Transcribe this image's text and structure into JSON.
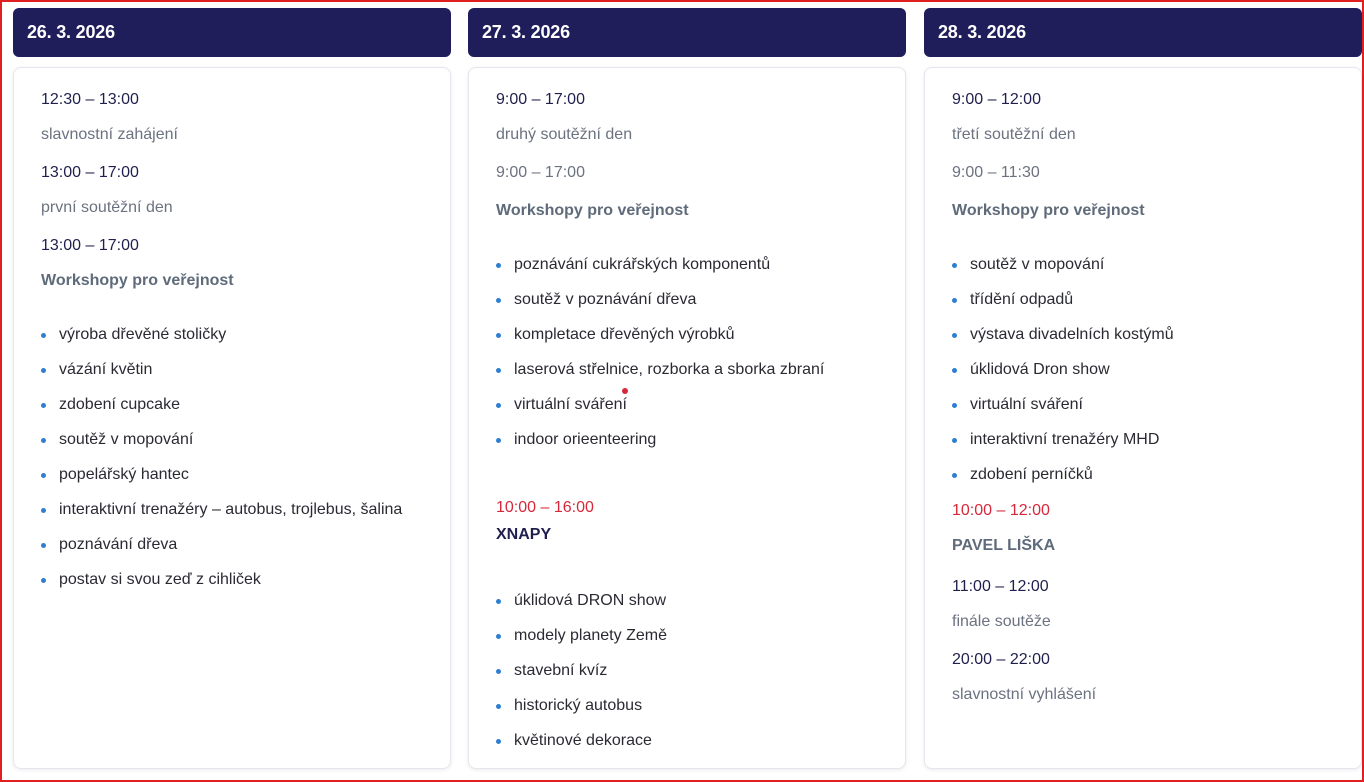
{
  "days": [
    {
      "date": "26. 3. 2026",
      "blocks": {
        "t1": "12:30 – 13:00",
        "d1": "slavnostní zahájení",
        "t2": "13:00 – 17:00",
        "d2": "první soutěžní den",
        "t3": "13:00 – 17:00",
        "h3": "Workshopy pro veřejnost"
      },
      "items": [
        "výroba dřevěné stoličky",
        "vázání květin",
        "zdobení cupcake",
        "soutěž v mopování",
        "popelářský hantec",
        "interaktivní trenažéry – autobus, trojlebus, šalina",
        "poznávání dřeva",
        "postav si svou zeď z cihliček"
      ]
    },
    {
      "date": "27. 3. 2026",
      "blocks": {
        "t1": "9:00 – 17:00",
        "d1": "druhý soutěžní den",
        "t2": "9:00 – 17:00",
        "h2": "Workshopy pro veřejnost",
        "t3": "10:00 – 16:00",
        "h3": "XNAPY"
      },
      "items": [
        "poznávání cukrářských komponentů",
        "soutěž v poznávání dřeva",
        "kompletace dřevěných výrobků",
        "laserová střelnice, rozborka a sborka zbraní",
        "virtuální sváření",
        "indoor orieenteering"
      ],
      "items2": [
        "úklidová DRON show",
        "modely planety Země",
        "stavební kvíz",
        "historický autobus",
        "květinové dekorace"
      ]
    },
    {
      "date": "28. 3. 2026",
      "blocks": {
        "t1": "9:00 – 12:00",
        "d1": "třetí soutěžní den",
        "t2": "9:00 – 11:30",
        "h2": "Workshopy pro veřejnost",
        "t3": "10:00 – 12:00",
        "h3": "PAVEL LIŠKA",
        "t4": "11:00 – 12:00",
        "d4": "finále soutěže",
        "t5": "20:00 – 22:00",
        "d5": "slavnostní vyhlášení"
      },
      "items": [
        "soutěž v mopování",
        "třídění odpadů",
        "výstava divadelních kostýmů",
        "úklidová Dron show",
        "virtuální sváření",
        "interaktivní trenažéry MHD",
        "zdobení perníčků"
      ]
    }
  ],
  "colors": {
    "header_bg": "#1f1d5a",
    "bullet": "#2f7fd1",
    "accent_red": "#d6283a",
    "frame": "#e02020"
  }
}
